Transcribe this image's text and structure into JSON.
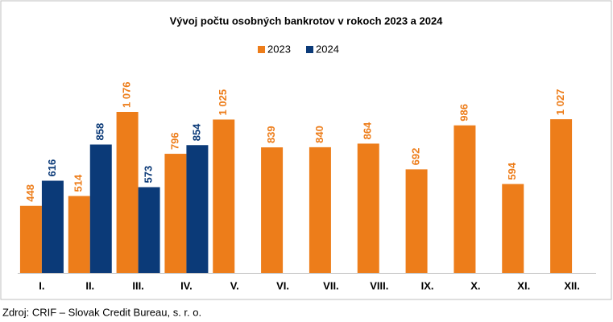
{
  "chart_data": {
    "type": "bar",
    "title": "Vývoj počtu osobných bankrotov v rokoch 2023 a 2024",
    "categories": [
      "I.",
      "II.",
      "III.",
      "IV.",
      "V.",
      "VI.",
      "VII.",
      "VIII.",
      "IX.",
      "X.",
      "XI.",
      "XII."
    ],
    "series": [
      {
        "name": "2023",
        "color": "#ed7d1a",
        "values": [
          448,
          514,
          1076,
          796,
          1025,
          839,
          840,
          864,
          692,
          986,
          594,
          1027
        ],
        "value_labels": [
          "448",
          "514",
          "1 076",
          "796",
          "1 025",
          "839",
          "840",
          "864",
          "692",
          "986",
          "594",
          "1 027"
        ]
      },
      {
        "name": "2024",
        "color": "#0b3a78",
        "values": [
          616,
          858,
          573,
          854,
          null,
          null,
          null,
          null,
          null,
          null,
          null,
          null
        ],
        "value_labels": [
          "616",
          "858",
          "573",
          "854",
          null,
          null,
          null,
          null,
          null,
          null,
          null,
          null
        ]
      }
    ],
    "legend": "top",
    "source": "Zdroj: CRIF – Slovak Credit Bureau, s. r. o."
  }
}
